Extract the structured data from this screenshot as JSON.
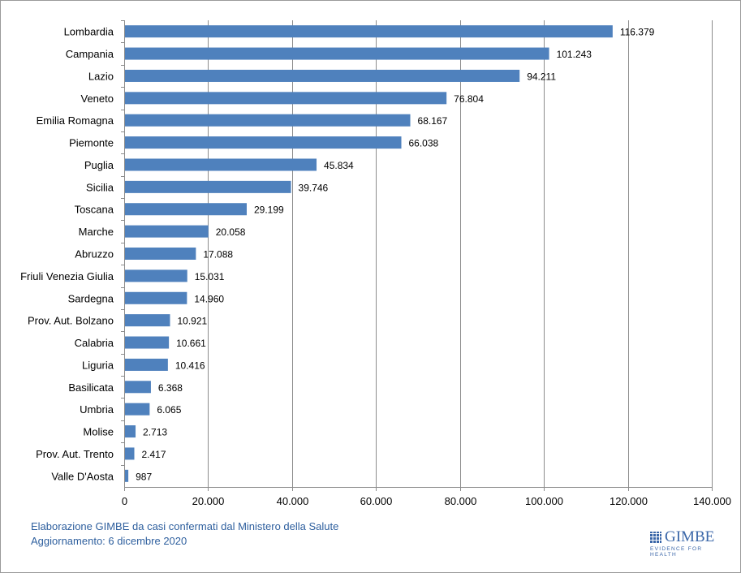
{
  "chart_data": {
    "type": "bar",
    "orientation": "horizontal",
    "categories": [
      "Lombardia",
      "Campania",
      "Lazio",
      "Veneto",
      "Emilia Romagna",
      "Piemonte",
      "Puglia",
      "Sicilia",
      "Toscana",
      "Marche",
      "Abruzzo",
      "Friuli Venezia Giulia",
      "Sardegna",
      "Prov. Aut. Bolzano",
      "Calabria",
      "Liguria",
      "Basilicata",
      "Umbria",
      "Molise",
      "Prov. Aut. Trento",
      "Valle D'Aosta"
    ],
    "values": [
      116379,
      101243,
      94211,
      76804,
      68167,
      66038,
      45834,
      39746,
      29199,
      20058,
      17088,
      15031,
      14960,
      10921,
      10661,
      10416,
      6368,
      6065,
      2713,
      2417,
      987
    ],
    "value_labels": [
      "116.379",
      "101.243",
      "94.211",
      "76.804",
      "68.167",
      "66.038",
      "45.834",
      "39.746",
      "29.199",
      "20.058",
      "17.088",
      "15.031",
      "14.960",
      "10.921",
      "10.661",
      "10.416",
      "6.368",
      "6.065",
      "2.713",
      "2.417",
      "987"
    ],
    "xlim": [
      0,
      140000
    ],
    "x_ticks": [
      0,
      20000,
      40000,
      60000,
      80000,
      100000,
      120000,
      140000
    ],
    "x_tick_labels": [
      "0",
      "20.000",
      "40.000",
      "60.000",
      "80.000",
      "100.000",
      "120.000",
      "140.000"
    ],
    "grid": "vertical",
    "bar_color": "#4f81bd",
    "title": "",
    "xlabel": "",
    "ylabel": ""
  },
  "footnote": {
    "line1": "Elaborazione GIMBE da casi confermati dal Ministero della Salute",
    "line2": "Aggiornamento: 6 dicembre 2020"
  },
  "logo": {
    "name": "GIMBE",
    "tagline": "EVIDENCE FOR HEALTH",
    "color": "#3a66a8"
  }
}
